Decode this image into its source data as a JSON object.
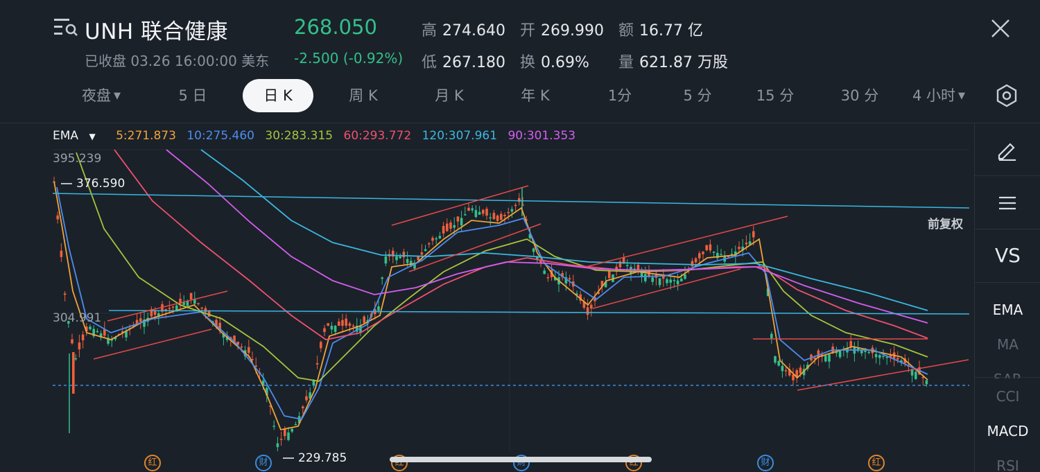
{
  "header": {
    "symbol": "UNH 联合健康",
    "price": "268.050",
    "status": "已收盘  03.26 16:00:00 美东",
    "change": "-2.500 (-0.92%)",
    "stats": {
      "high_label": "高",
      "high": "274.640",
      "open_label": "开",
      "open": "269.990",
      "amount_label": "额",
      "amount": "16.77 亿",
      "low_label": "低",
      "low": "267.180",
      "turnover_label": "换",
      "turnover": "0.69%",
      "volume_label": "量",
      "volume": "621.87 万股"
    }
  },
  "tabs": [
    "夜盘",
    "5 日",
    "日 K",
    "周 K",
    "月 K",
    "年 K",
    "1分",
    "5 分",
    "15 分",
    "30 分",
    "4 小时"
  ],
  "active_tab": "日 K",
  "ema": {
    "label": "EMA",
    "items": [
      {
        "text": "5:271.873",
        "color": "#f0a43a"
      },
      {
        "text": "10:275.460",
        "color": "#4c8df0"
      },
      {
        "text": "30:283.315",
        "color": "#a8c43c"
      },
      {
        "text": "60:293.772",
        "color": "#f0506e"
      },
      {
        "text": "120:307.961",
        "color": "#3ab8e0"
      },
      {
        "text": "90:301.353",
        "color": "#d45ef0"
      }
    ]
  },
  "chart": {
    "price_adjust_label": "前复权",
    "axis_top": "395.239",
    "axis_mid": "304.991",
    "marker_high": "376.590",
    "marker_low": "229.785"
  },
  "events": [
    {
      "glyph": "红",
      "kind": "dividend"
    },
    {
      "glyph": "财",
      "kind": "earnings"
    },
    {
      "glyph": "红",
      "kind": "dividend"
    },
    {
      "glyph": "财",
      "kind": "earnings"
    },
    {
      "glyph": "红",
      "kind": "dividend"
    },
    {
      "glyph": "财",
      "kind": "earnings"
    },
    {
      "glyph": "红",
      "kind": "dividend"
    }
  ],
  "sidebar": {
    "vs": "VS",
    "indicators": [
      "EMA",
      "MA",
      "SAR",
      "CCI",
      "MACD",
      "RSI"
    ]
  },
  "colors": {
    "up": "#32c08c",
    "down": "#f0603c",
    "trendline": "#e84a4a",
    "support": "#3ab8e0"
  }
}
